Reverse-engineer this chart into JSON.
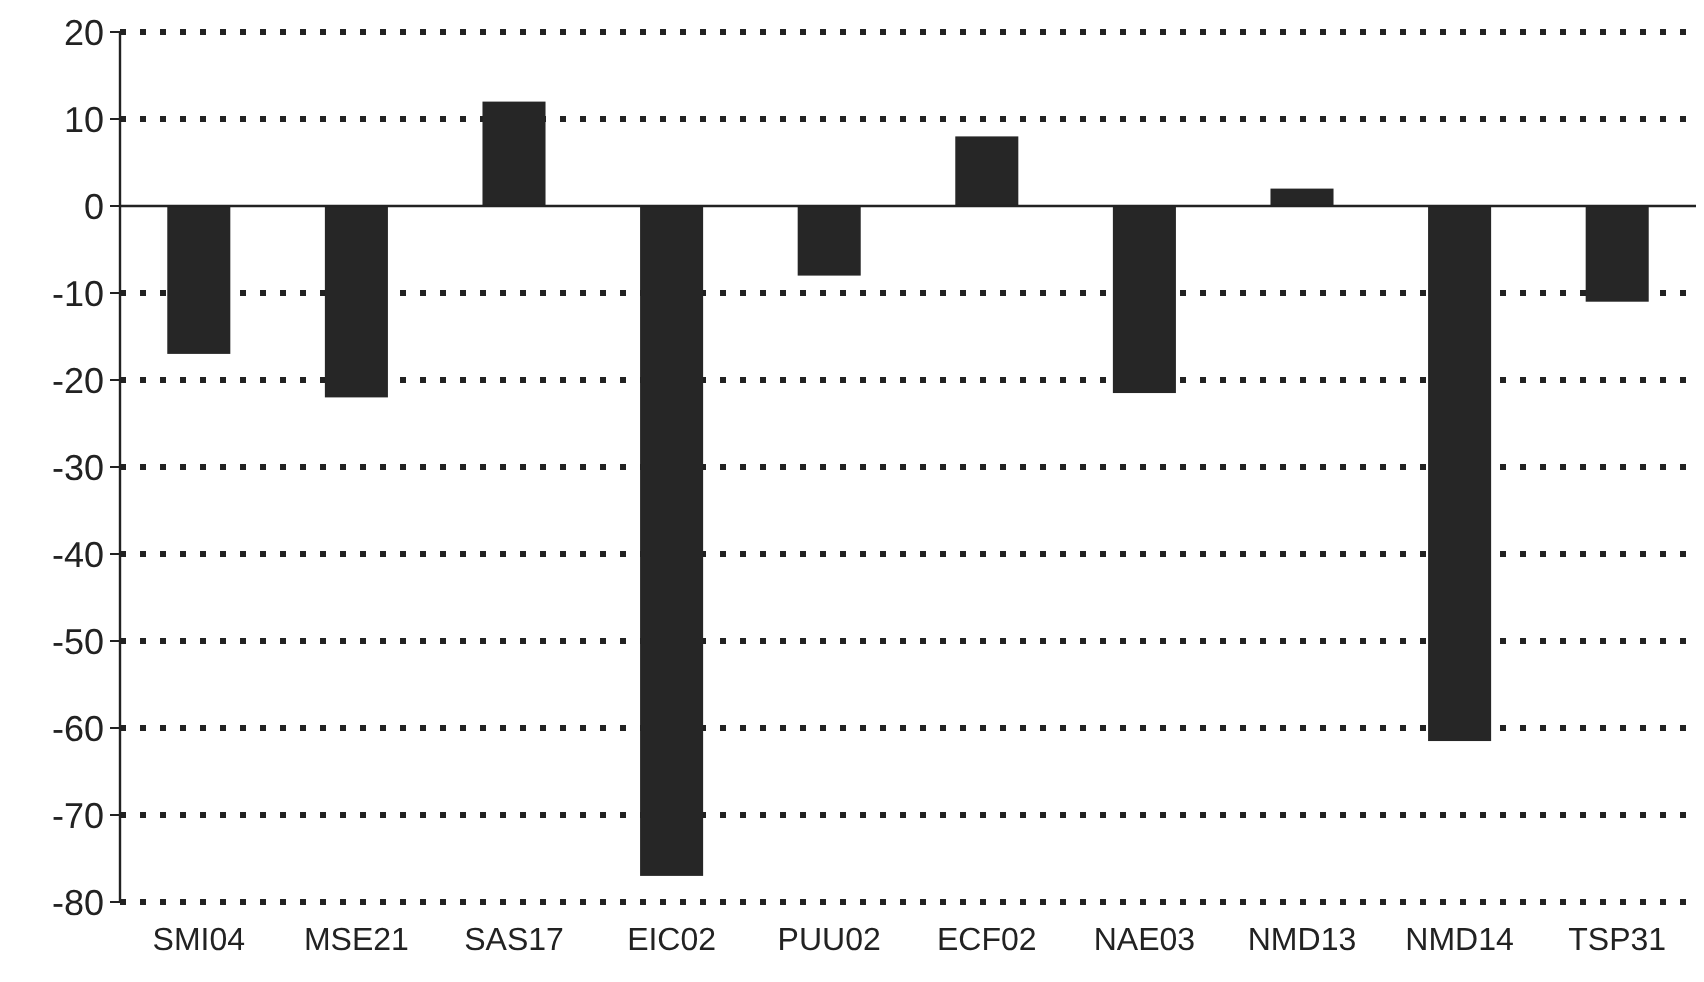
{
  "chart_data": {
    "type": "bar",
    "categories": [
      "SMI04",
      "MSE21",
      "SAS17",
      "EIC02",
      "PUU02",
      "ECF02",
      "NAE03",
      "NMD13",
      "NMD14",
      "TSP31"
    ],
    "values": [
      -17,
      -22,
      12,
      -77,
      -8,
      8,
      -21.5,
      2,
      -61.5,
      -11
    ],
    "color": "#262626",
    "ylim": [
      -80,
      20
    ],
    "yticks": [
      -80,
      -70,
      -60,
      -50,
      -40,
      -30,
      -20,
      -10,
      0,
      10,
      20
    ],
    "grid": "y"
  }
}
